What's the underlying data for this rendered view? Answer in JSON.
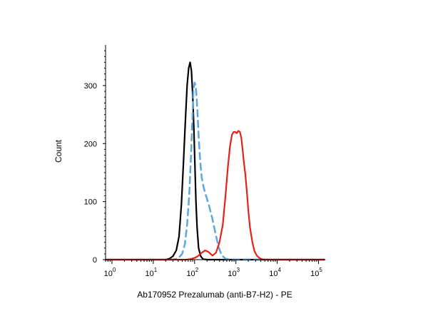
{
  "chart_data": {
    "type": "line",
    "title": "",
    "xlabel": "Ab170952 Prezalumab (anti-B7-H2) - PE",
    "ylabel": "Count",
    "xscale": "log",
    "xlim": [
      0.7,
      140000
    ],
    "ylim": [
      0,
      370
    ],
    "grid": false,
    "legend": "none",
    "x_ticks": [
      {
        "base": "10",
        "exp": "0",
        "value": 1
      },
      {
        "base": "10",
        "exp": "1",
        "value": 10
      },
      {
        "base": "10",
        "exp": "2",
        "value": 100
      },
      {
        "base": "10",
        "exp": "3",
        "value": 1000
      },
      {
        "base": "10",
        "exp": "4",
        "value": 10000
      },
      {
        "base": "10",
        "exp": "5",
        "value": 100000
      }
    ],
    "y_ticks": [
      {
        "label": "0",
        "value": 0
      },
      {
        "label": "100",
        "value": 100
      },
      {
        "label": "200",
        "value": 200
      },
      {
        "label": "300",
        "value": 300
      }
    ],
    "series": [
      {
        "color": "#000000",
        "style": "solid",
        "x": [
          0.7,
          20,
          25,
          30,
          36,
          42,
          48,
          54,
          60,
          66,
          72,
          78,
          84,
          90,
          96,
          102,
          108,
          115,
          125,
          140,
          160,
          200,
          300,
          140000
        ],
        "y": [
          0,
          0,
          2,
          6,
          16,
          40,
          95,
          170,
          240,
          300,
          330,
          340,
          325,
          285,
          225,
          160,
          100,
          55,
          20,
          6,
          1,
          0,
          0,
          0
        ]
      },
      {
        "color": "#5aa7e2",
        "style": "dashed",
        "x": [
          0.7,
          28,
          35,
          42,
          50,
          58,
          66,
          74,
          82,
          88,
          94,
          100,
          106,
          112,
          118,
          125,
          132,
          140,
          150,
          165,
          180,
          200,
          230,
          270,
          320,
          380,
          450,
          550,
          700,
          140000
        ],
        "y": [
          0,
          0,
          1,
          4,
          10,
          26,
          60,
          110,
          180,
          240,
          290,
          305,
          300,
          280,
          250,
          215,
          185,
          160,
          140,
          125,
          115,
          105,
          90,
          70,
          45,
          22,
          8,
          2,
          0,
          0
        ]
      },
      {
        "color": "#e2231a",
        "style": "solid",
        "x": [
          0.7,
          60,
          80,
          100,
          120,
          150,
          180,
          220,
          270,
          330,
          400,
          480,
          560,
          640,
          720,
          800,
          880,
          960,
          1050,
          1150,
          1250,
          1350,
          1450,
          1550,
          1700,
          1850,
          2000,
          2200,
          2500,
          2800,
          3200,
          3700,
          4200,
          5000,
          6000,
          8000,
          140000
        ],
        "y": [
          0,
          0,
          1,
          3,
          6,
          12,
          16,
          13,
          7,
          12,
          30,
          60,
          110,
          160,
          195,
          215,
          220,
          220,
          218,
          222,
          220,
          210,
          190,
          170,
          145,
          115,
          85,
          55,
          30,
          15,
          7,
          3,
          1,
          0,
          0,
          0,
          0
        ]
      }
    ]
  }
}
